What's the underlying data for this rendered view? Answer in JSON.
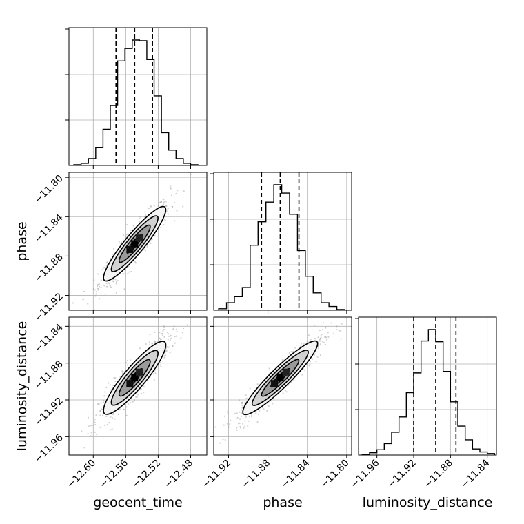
{
  "chart_data": {
    "type": "corner",
    "parameters": [
      "geocent_time",
      "phase",
      "luminosity_distance"
    ],
    "axis_labels": {
      "x": [
        "geocent_time",
        "phase",
        "luminosity_distance"
      ],
      "y": [
        "",
        "phase",
        "luminosity_distance"
      ]
    },
    "ranges": {
      "geocent_time": [
        -12.63,
        -12.46
      ],
      "phase": [
        -11.935,
        -11.795
      ],
      "luminosity_distance": [
        -11.98,
        -11.83
      ]
    },
    "ticks": {
      "geocent_time": [
        -12.6,
        -12.56,
        -12.52,
        -12.48
      ],
      "phase": [
        -11.92,
        -11.88,
        -11.84,
        -11.8
      ],
      "luminosity_distance": [
        -11.96,
        -11.92,
        -11.88,
        -11.84
      ]
    },
    "tick_labels": {
      "geocent_time": [
        "−12.60",
        "−12.56",
        "−12.52",
        "−12.48"
      ],
      "phase": [
        "−11.92",
        "−11.88",
        "−11.84",
        "−11.80"
      ],
      "luminosity_distance": [
        "−11.96",
        "−11.92",
        "−11.88",
        "−11.84"
      ]
    },
    "quantiles": {
      "geocent_time": [
        -12.572,
        -12.549,
        -12.527
      ],
      "phase": [
        -11.8865,
        -11.8675,
        -11.8485
      ],
      "luminosity_distance": [
        -11.92,
        -11.896,
        -11.874
      ]
    },
    "histograms": {
      "geocent_time": {
        "bin_edges": [
          -12.624,
          -12.615,
          -12.606,
          -12.597,
          -12.588,
          -12.579,
          -12.57,
          -12.561,
          -12.552,
          -12.543,
          -12.534,
          -12.525,
          -12.516,
          -12.507,
          -12.498,
          -12.489,
          -12.48,
          -12.471,
          -12.462
        ],
        "counts": [
          1,
          3,
          10,
          26,
          52,
          86,
          150,
          168,
          180,
          179,
          152,
          100,
          47,
          22,
          10,
          3,
          1,
          0
        ]
      },
      "phase": {
        "bin_edges": [
          -11.93,
          -11.922,
          -11.914,
          -11.906,
          -11.898,
          -11.89,
          -11.882,
          -11.874,
          -11.866,
          -11.858,
          -11.85,
          -11.842,
          -11.834,
          -11.826,
          -11.818,
          -11.81,
          -11.802
        ],
        "counts": [
          2,
          10,
          18,
          30,
          86,
          117,
          143,
          166,
          155,
          127,
          79,
          45,
          23,
          10,
          5,
          1
        ]
      },
      "luminosity_distance": {
        "bin_edges": [
          -11.976,
          -11.968,
          -11.96,
          -11.952,
          -11.944,
          -11.936,
          -11.928,
          -11.92,
          -11.912,
          -11.904,
          -11.896,
          -11.888,
          -11.88,
          -11.872,
          -11.864,
          -11.856,
          -11.848,
          -11.84,
          -11.832
        ],
        "counts": [
          1,
          3,
          7,
          15,
          30,
          50,
          82,
          108,
          150,
          165,
          149,
          110,
          70,
          38,
          20,
          8,
          4,
          2
        ]
      }
    },
    "scatter_2d": [
      {
        "x": "geocent_time",
        "y": "phase",
        "center": [
          -12.549,
          -11.8675
        ],
        "sigma": [
          0.019,
          0.019
        ],
        "correlation": 0.92,
        "points": 700
      },
      {
        "x": "geocent_time",
        "y": "luminosity_distance",
        "center": [
          -12.549,
          -11.896
        ],
        "sigma": [
          0.019,
          0.02
        ],
        "correlation": 0.9,
        "points": 700
      },
      {
        "x": "phase",
        "y": "luminosity_distance",
        "center": [
          -11.8675,
          -11.896
        ],
        "sigma": [
          0.019,
          0.02
        ],
        "correlation": 0.93,
        "points": 700
      }
    ],
    "grid": true,
    "legend": "none"
  }
}
